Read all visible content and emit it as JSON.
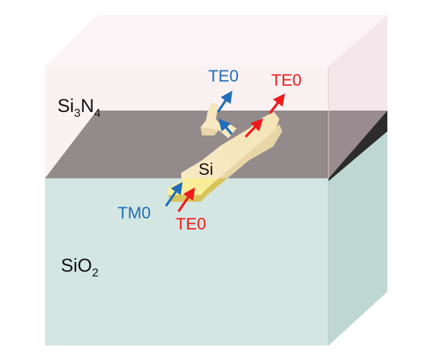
{
  "labels": {
    "top_cladding": {
      "base1": "Si",
      "sub1": "3",
      "base2": "N",
      "sub2": "4"
    },
    "bottom_cladding": {
      "base": "SiO",
      "sub": "2"
    },
    "core": "Si",
    "output_te_branch": "TE0",
    "output_tm_branch": "TE0",
    "input_tm": "TM0",
    "input_te": "TE0"
  },
  "colors": {
    "sin_layer": "#f6e6ea",
    "sio2_layer": "#cfe3df",
    "interface": "#1c1c1c",
    "si_core": "#f4e67e",
    "te_arrow": "#ee1c1c",
    "tm_arrow": "#1f6fba"
  }
}
